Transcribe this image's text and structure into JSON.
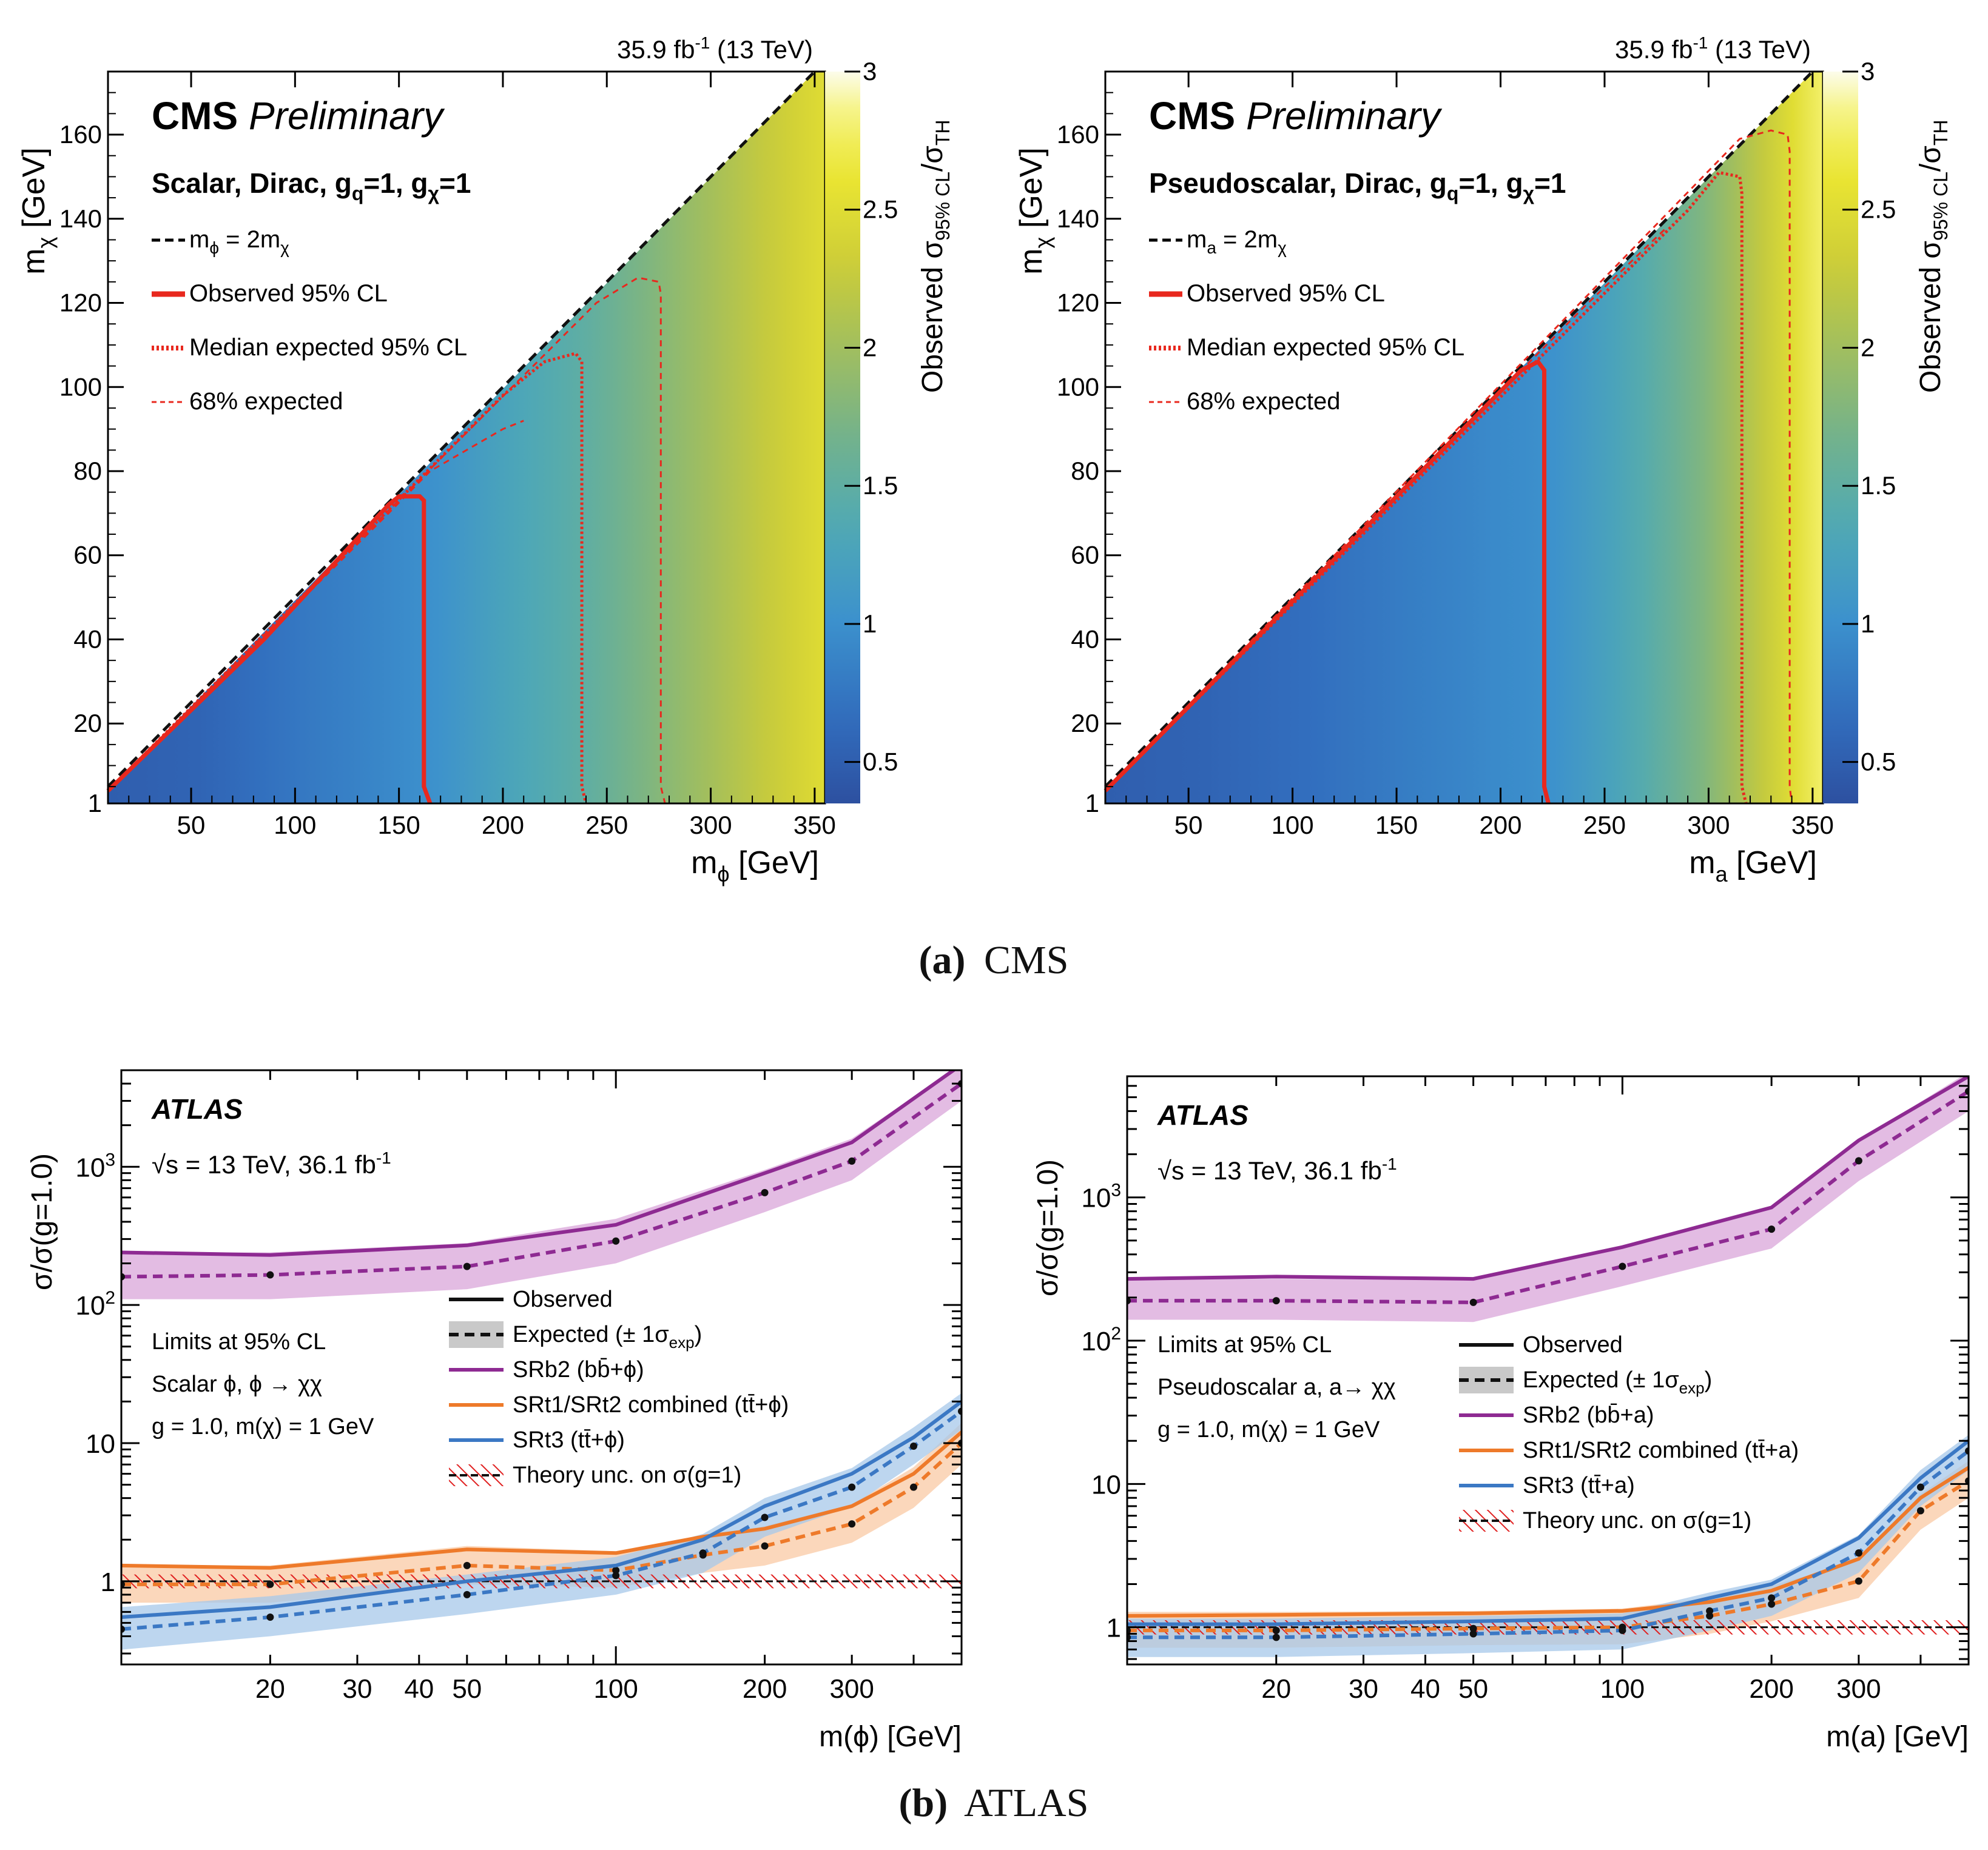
{
  "captions": {
    "a": {
      "letter": "(a)",
      "text": "CMS"
    },
    "b": {
      "letter": "(b)",
      "text": "ATLAS"
    }
  },
  "colors": {
    "observed_red": "#e8281e",
    "expected_red": "#e8281e",
    "purple": "#8e2a92",
    "purple_band": "#d9a6d9",
    "orange": "#ee7a2a",
    "orange_band": "#f9c9a4",
    "blue": "#3b78c4",
    "blue_band": "#a7c8ea",
    "theory_red": "#e02020"
  },
  "chart_data": [
    {
      "id": "cms_scalar",
      "type": "heatmap",
      "lumi": "35.9 fb",
      "lumi_sup": "-1",
      "lumi_energy": "(13 TeV)",
      "experiment": "CMS",
      "status": "Preliminary",
      "model": "Scalar, Dirac, g",
      "model_sub1": "q",
      "model_mid": "=1, g",
      "model_sub2": "χ",
      "model_end": "=1",
      "xlabel": "m",
      "xlabel_sub": "ϕ",
      "xlabel_unit": "[GeV]",
      "ylabel": "m",
      "ylabel_sub": "χ",
      "ylabel_unit": "[GeV]",
      "zlabel": "Observed σ",
      "zlabel_sub": "95% CL",
      "zlabel_end": "/σ",
      "zlabel_sub2": "TH",
      "xlim": [
        10,
        355
      ],
      "ylim": [
        1,
        175
      ],
      "zlim": [
        0.35,
        3.0
      ],
      "xticks": [
        50,
        100,
        150,
        200,
        250,
        300,
        350
      ],
      "yticks": [
        1,
        20,
        40,
        60,
        80,
        100,
        120,
        140,
        160
      ],
      "zticks": [
        0.5,
        1,
        1.5,
        2,
        2.5,
        3
      ],
      "ratio_vs_mediator": [
        [
          10,
          0.5
        ],
        [
          50,
          0.55
        ],
        [
          100,
          0.75
        ],
        [
          150,
          0.95
        ],
        [
          165,
          1.0
        ],
        [
          200,
          1.25
        ],
        [
          240,
          1.5
        ],
        [
          280,
          1.85
        ],
        [
          320,
          2.2
        ],
        [
          355,
          2.5
        ]
      ],
      "legend": [
        {
          "style": "diag",
          "label": "m",
          "sub1": "ϕ",
          "mid": " = 2m",
          "sub2": "χ"
        },
        {
          "style": "observed",
          "label": "Observed 95% CL"
        },
        {
          "style": "expected",
          "label": "Median expected 95% CL"
        },
        {
          "style": "band68",
          "label": "68% expected"
        }
      ],
      "observed_contour": [
        [
          10,
          4
        ],
        [
          85,
          40
        ],
        [
          145,
          72
        ],
        [
          150,
          74
        ],
        [
          160,
          74
        ],
        [
          162,
          73
        ],
        [
          162,
          5
        ],
        [
          165,
          1
        ]
      ],
      "expected_contour": [
        [
          10,
          4
        ],
        [
          200,
          98
        ],
        [
          220,
          106
        ],
        [
          235,
          108
        ],
        [
          238,
          106
        ],
        [
          238,
          5
        ],
        [
          240,
          1
        ]
      ],
      "expected68_upper": [
        [
          10,
          4
        ],
        [
          245,
          120
        ],
        [
          265,
          126
        ],
        [
          275,
          125
        ],
        [
          276,
          122
        ],
        [
          276,
          5
        ],
        [
          278,
          1
        ]
      ],
      "expected68_lower": [
        [
          10,
          4
        ],
        [
          90,
          43
        ],
        [
          145,
          70
        ],
        [
          165,
          80
        ],
        [
          200,
          90
        ],
        [
          210,
          92
        ]
      ]
    },
    {
      "id": "cms_pseudoscalar",
      "type": "heatmap",
      "lumi": "35.9 fb",
      "lumi_sup": "-1",
      "lumi_energy": "(13 TeV)",
      "experiment": "CMS",
      "status": "Preliminary",
      "model": "Pseudoscalar, Dirac, g",
      "model_sub1": "q",
      "model_mid": "=1, g",
      "model_sub2": "χ",
      "model_end": "=1",
      "xlabel": "m",
      "xlabel_sub": "a",
      "xlabel_unit": "[GeV]",
      "ylabel": "m",
      "ylabel_sub": "χ",
      "ylabel_unit": "[GeV]",
      "zlabel": "Observed σ",
      "zlabel_sub": "95% CL",
      "zlabel_end": "/σ",
      "zlabel_sub2": "TH",
      "xlim": [
        10,
        355
      ],
      "ylim": [
        1,
        175
      ],
      "zlim": [
        0.35,
        3.0
      ],
      "xticks": [
        50,
        100,
        150,
        200,
        250,
        300,
        350
      ],
      "yticks": [
        1,
        20,
        40,
        60,
        80,
        100,
        120,
        140,
        160
      ],
      "zticks": [
        0.5,
        1,
        1.5,
        2,
        2.5,
        3
      ],
      "ratio_vs_mediator": [
        [
          10,
          0.5
        ],
        [
          50,
          0.55
        ],
        [
          100,
          0.65
        ],
        [
          150,
          0.8
        ],
        [
          200,
          0.95
        ],
        [
          222,
          1.0
        ],
        [
          260,
          1.3
        ],
        [
          300,
          1.8
        ],
        [
          318,
          2.1
        ],
        [
          340,
          2.5
        ],
        [
          355,
          2.8
        ]
      ],
      "legend": [
        {
          "style": "diag",
          "label": "m",
          "sub1": "a",
          "mid": " = 2m",
          "sub2": "χ"
        },
        {
          "style": "observed",
          "label": "Observed 95% CL"
        },
        {
          "style": "expected",
          "label": "Median expected 95% CL"
        },
        {
          "style": "band68",
          "label": "68% expected"
        }
      ],
      "observed_contour": [
        [
          10,
          4
        ],
        [
          210,
          104
        ],
        [
          218,
          106
        ],
        [
          221,
          104
        ],
        [
          221,
          5
        ],
        [
          223,
          1
        ]
      ],
      "expected_contour": [
        [
          10,
          4
        ],
        [
          290,
          142
        ],
        [
          305,
          151
        ],
        [
          315,
          150
        ],
        [
          316,
          146
        ],
        [
          316,
          5
        ],
        [
          318,
          1
        ]
      ],
      "expected68_upper": [
        [
          10,
          4
        ],
        [
          315,
          159
        ],
        [
          330,
          161
        ],
        [
          338,
          160
        ],
        [
          339,
          156
        ],
        [
          339,
          5
        ],
        [
          340,
          1
        ]
      ],
      "expected68_lower": [
        [
          10,
          4
        ],
        [
          240,
          119
        ],
        [
          280,
          138
        ]
      ]
    },
    {
      "id": "atlas_scalar",
      "type": "line",
      "experiment": "ATLAS",
      "energy": "√s = 13 TeV, 36.1 fb",
      "energy_sup": "-1",
      "ylabel": "σ/σ(g=1.0)",
      "xlabel": "m(ϕ) [GeV]",
      "xscale": "log",
      "yscale": "log",
      "xlim": [
        10,
        500
      ],
      "ylim": [
        0.25,
        5000
      ],
      "xticks": [
        20,
        30,
        40,
        50,
        100,
        200,
        300
      ],
      "yticks": [
        {
          "v": 1,
          "t": "1"
        },
        {
          "v": 10,
          "t": "10"
        },
        {
          "v": 100,
          "t": "10",
          "sup": "2"
        },
        {
          "v": 1000,
          "t": "10",
          "sup": "3"
        }
      ],
      "info": [
        "Limits at 95% CL",
        "Scalar ϕ, ϕ → χχ",
        "g = 1.0,  m(χ) = 1 GeV"
      ],
      "legend": [
        {
          "style": "obs",
          "label": "Observed"
        },
        {
          "style": "exp",
          "label": "Expected (± 1σ",
          "sub": "exp",
          "end": ")"
        },
        {
          "style": "purple",
          "label": "SRb2 (bb̄+ϕ)"
        },
        {
          "style": "orange",
          "label": "SRt1/SRt2 combined (tt̄+ϕ)"
        },
        {
          "style": "blue",
          "label": "SRt3 (tt̄+ϕ)"
        },
        {
          "style": "theory",
          "label": "Theory unc. on σ(g=1)"
        }
      ],
      "series": [
        {
          "name": "SRb2 (bb̄+ϕ)",
          "color": "purple",
          "x": [
            10,
            20,
            50,
            100,
            200,
            300,
            500
          ],
          "observed": [
            240,
            230,
            270,
            380,
            900,
            1500,
            5500
          ],
          "expected": [
            160,
            165,
            190,
            290,
            650,
            1100,
            4000
          ],
          "band_lo": [
            110,
            110,
            130,
            200,
            470,
            800,
            3000
          ],
          "band_hi": [
            240,
            240,
            280,
            420,
            950,
            1600,
            5500
          ]
        },
        {
          "name": "SRt1/SRt2 combined (tt̄+ϕ)",
          "color": "orange",
          "x": [
            10,
            20,
            50,
            100,
            150,
            200,
            300,
            400,
            500
          ],
          "observed": [
            1.3,
            1.25,
            1.7,
            1.6,
            2.1,
            2.4,
            3.5,
            6.0,
            12
          ],
          "expected": [
            0.95,
            0.95,
            1.3,
            1.2,
            1.55,
            1.8,
            2.6,
            4.8,
            10
          ],
          "band_lo": [
            0.7,
            0.7,
            0.95,
            0.9,
            1.15,
            1.3,
            1.9,
            3.4,
            7
          ],
          "band_hi": [
            1.3,
            1.3,
            1.8,
            1.65,
            2.1,
            2.5,
            3.6,
            6.7,
            14
          ]
        },
        {
          "name": "SRt3 (tt̄+ϕ)",
          "color": "blue",
          "x": [
            10,
            20,
            50,
            100,
            150,
            200,
            300,
            400,
            500
          ],
          "observed": [
            0.55,
            0.65,
            1.0,
            1.3,
            2.0,
            3.5,
            6.0,
            11,
            20
          ],
          "expected": [
            0.45,
            0.55,
            0.8,
            1.1,
            1.6,
            2.9,
            4.8,
            9.5,
            17
          ],
          "band_lo": [
            0.32,
            0.4,
            0.58,
            0.8,
            1.15,
            2.1,
            3.5,
            7,
            12.5
          ],
          "band_hi": [
            0.65,
            0.78,
            1.12,
            1.5,
            2.2,
            4.0,
            6.6,
            13,
            23
          ]
        }
      ],
      "theory": 1.0
    },
    {
      "id": "atlas_pseudoscalar",
      "type": "line",
      "experiment": "ATLAS",
      "energy": "√s = 13 TeV, 36.1 fb",
      "energy_sup": "-1",
      "ylabel": "σ/σ(g=1.0)",
      "xlabel": "m(a) [GeV]",
      "xscale": "log",
      "yscale": "log",
      "xlim": [
        10,
        500
      ],
      "ylim": [
        0.55,
        7000
      ],
      "xticks": [
        20,
        30,
        40,
        50,
        100,
        200,
        300
      ],
      "yticks": [
        {
          "v": 1,
          "t": "1"
        },
        {
          "v": 10,
          "t": "10"
        },
        {
          "v": 100,
          "t": "10",
          "sup": "2"
        },
        {
          "v": 1000,
          "t": "10",
          "sup": "3"
        }
      ],
      "info": [
        "Limits at 95% CL",
        "Pseudoscalar a, a→ χχ",
        "g = 1.0,  m(χ) = 1 GeV"
      ],
      "legend": [
        {
          "style": "obs",
          "label": "Observed"
        },
        {
          "style": "exp",
          "label": "Expected (± 1σ",
          "sub": "exp",
          "end": ")"
        },
        {
          "style": "purple",
          "label": "SRb2 (bb̄+a)"
        },
        {
          "style": "orange",
          "label": "SRt1/SRt2 combined (tt̄+a)"
        },
        {
          "style": "blue",
          "label": "SRt3 (tt̄+a)"
        },
        {
          "style": "theory",
          "label": "Theory unc. on σ(g=1)"
        }
      ],
      "series": [
        {
          "name": "SRb2 (bb̄+a)",
          "color": "purple",
          "x": [
            10,
            20,
            50,
            100,
            200,
            300,
            500
          ],
          "observed": [
            270,
            280,
            270,
            450,
            850,
            2500,
            7000
          ],
          "expected": [
            190,
            190,
            185,
            330,
            600,
            1800,
            5500
          ],
          "band_lo": [
            140,
            140,
            135,
            240,
            440,
            1300,
            4000
          ],
          "band_hi": [
            270,
            270,
            265,
            460,
            850,
            2500,
            7500
          ]
        },
        {
          "name": "SRt1/SRt2 combined (tt̄+a)",
          "color": "orange",
          "x": [
            10,
            20,
            50,
            100,
            150,
            200,
            300,
            400,
            500
          ],
          "observed": [
            1.2,
            1.22,
            1.25,
            1.3,
            1.5,
            1.8,
            3.0,
            8.0,
            13
          ],
          "expected": [
            0.95,
            0.95,
            0.98,
            1.0,
            1.2,
            1.45,
            2.1,
            6.5,
            10.5
          ],
          "band_lo": [
            0.72,
            0.72,
            0.75,
            0.76,
            0.9,
            1.1,
            1.6,
            4.8,
            8
          ],
          "band_hi": [
            1.28,
            1.28,
            1.3,
            1.35,
            1.6,
            1.95,
            2.9,
            8.5,
            14.5
          ]
        },
        {
          "name": "SRt3 (tt̄+a)",
          "color": "blue",
          "x": [
            10,
            20,
            50,
            100,
            150,
            200,
            300,
            400,
            500
          ],
          "observed": [
            1.05,
            1.05,
            1.1,
            1.15,
            1.6,
            2.0,
            4.2,
            11,
            20
          ],
          "expected": [
            0.85,
            0.85,
            0.9,
            0.95,
            1.3,
            1.6,
            3.3,
            9.5,
            17
          ],
          "band_lo": [
            0.62,
            0.62,
            0.66,
            0.7,
            0.95,
            1.2,
            2.4,
            7,
            12.5
          ],
          "band_hi": [
            1.15,
            1.15,
            1.2,
            1.25,
            1.75,
            2.15,
            4.4,
            12.5,
            22
          ]
        }
      ],
      "theory": 1.0
    }
  ]
}
